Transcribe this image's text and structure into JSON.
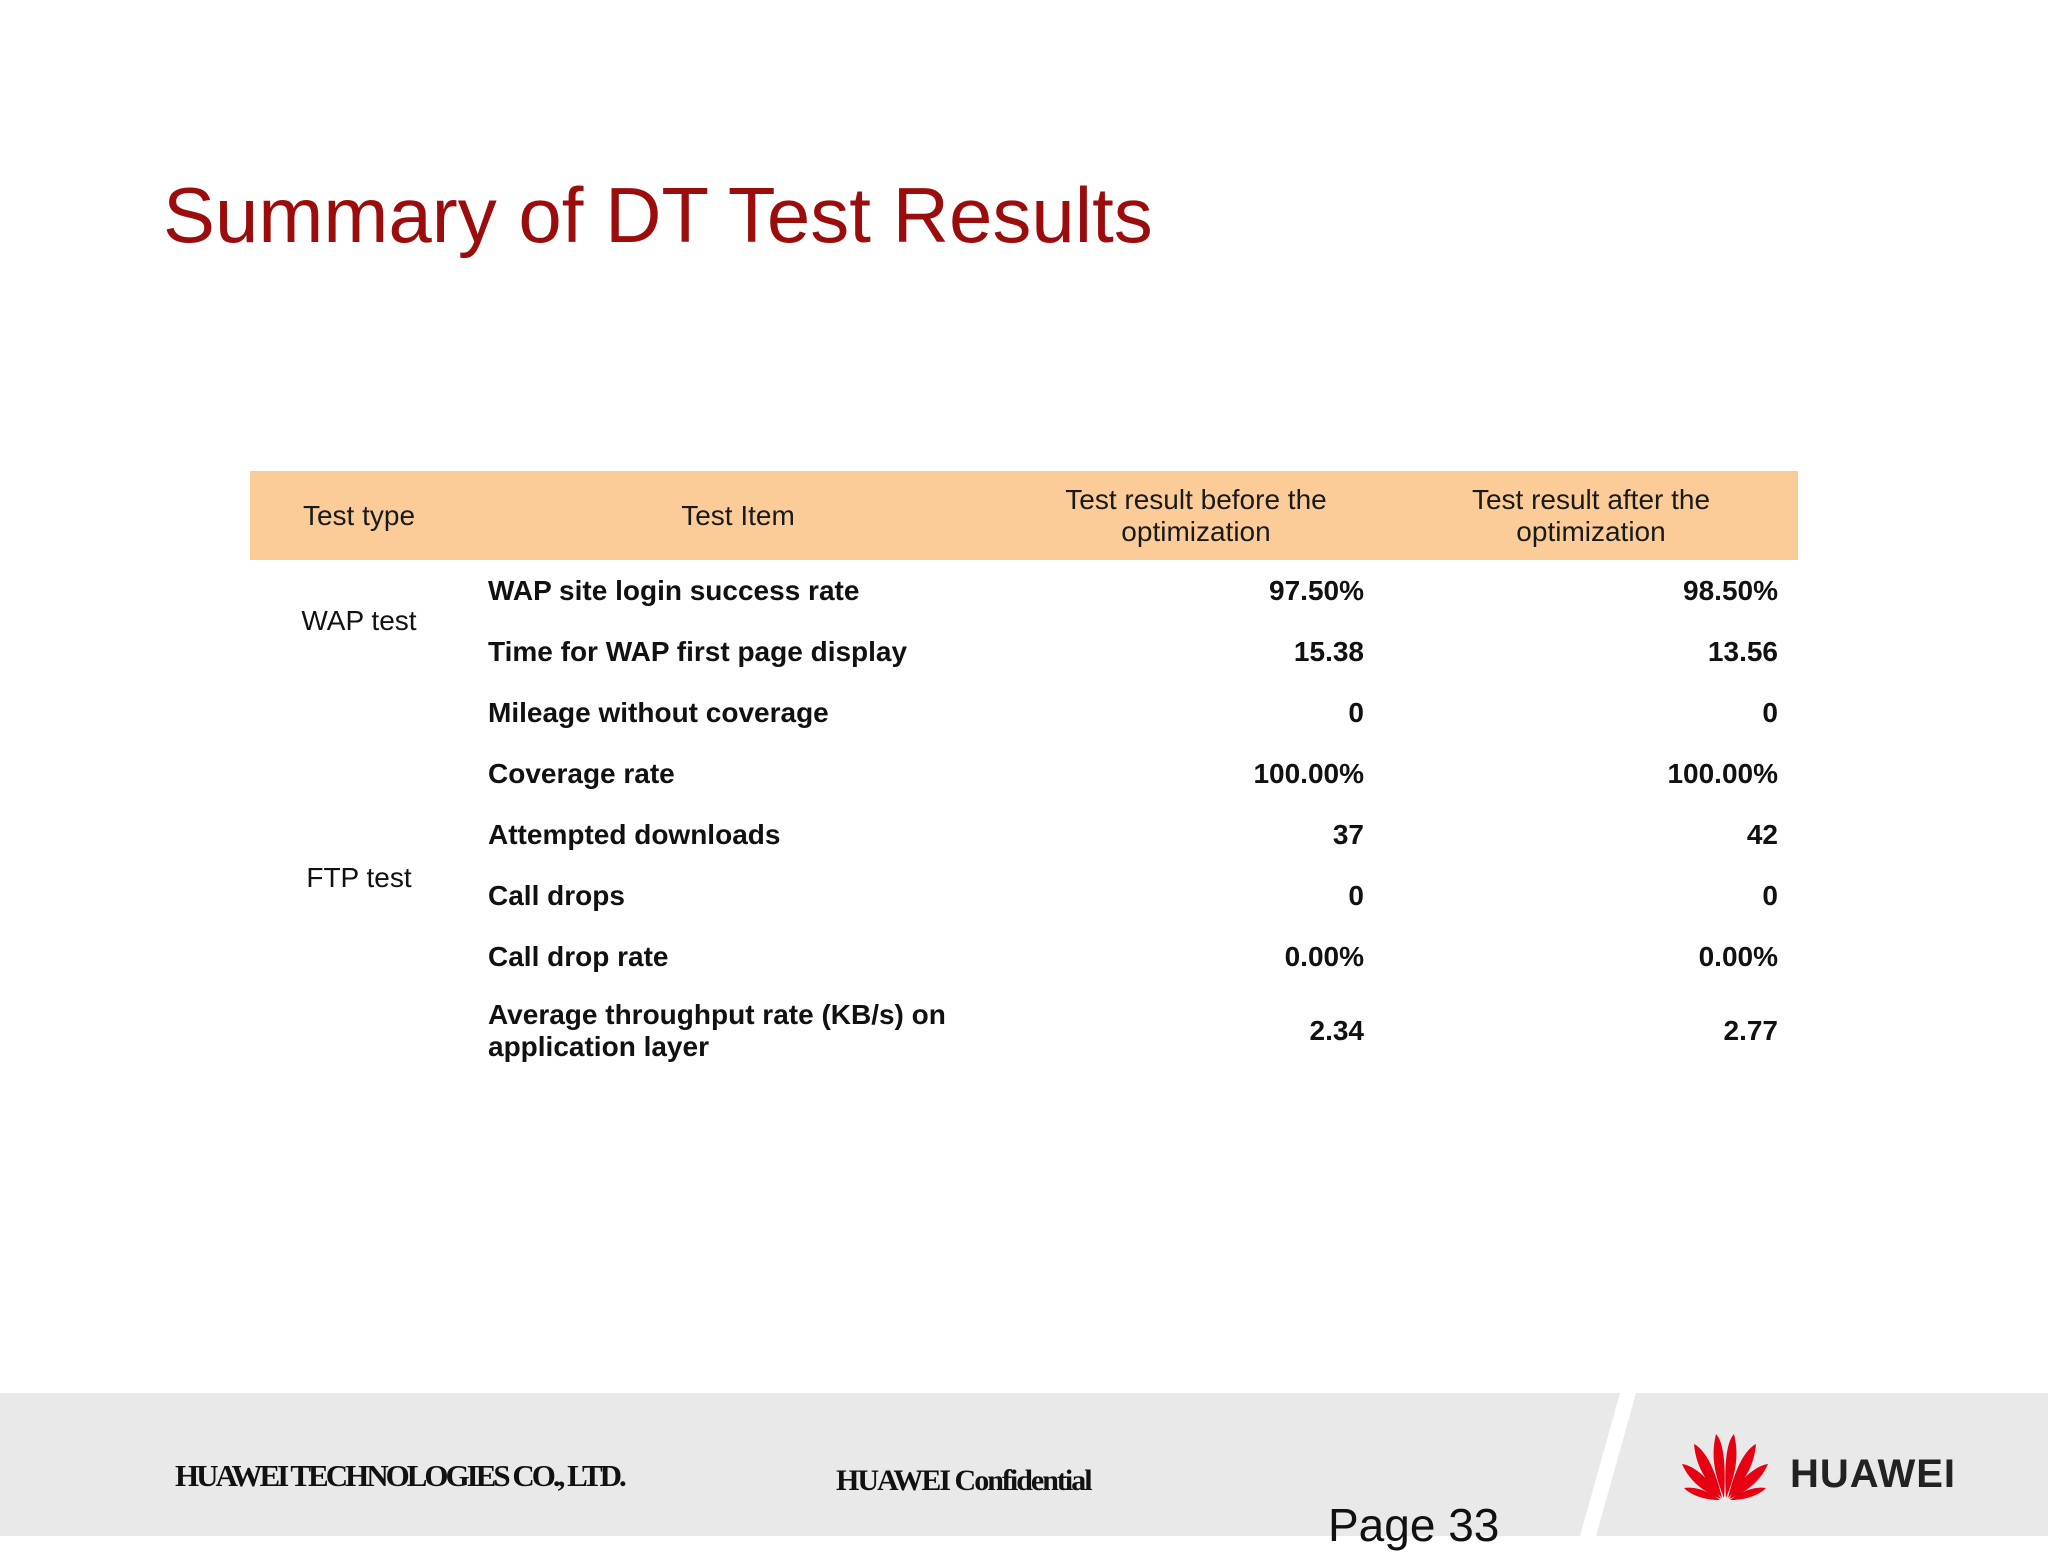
{
  "slide": {
    "title": "Summary of DT Test Results"
  },
  "table": {
    "headers": {
      "type": "Test type",
      "item": "Test Item",
      "before": "Test result before the optimization",
      "after": "Test result after the optimization"
    },
    "groups": {
      "wap": "WAP test",
      "ftp": "FTP test"
    },
    "rows": [
      {
        "item": "WAP site login success rate",
        "before": "97.50%",
        "after": "98.50%"
      },
      {
        "item": "Time for WAP first page display",
        "before": "15.38",
        "after": "13.56"
      },
      {
        "item": "Mileage without coverage",
        "before": "0",
        "after": "0"
      },
      {
        "item": "Coverage rate",
        "before": "100.00%",
        "after": "100.00%"
      },
      {
        "item": "Attempted downloads",
        "before": "37",
        "after": "42"
      },
      {
        "item": "Call drops",
        "before": "0",
        "after": "0"
      },
      {
        "item": "Call drop rate",
        "before": "0.00%",
        "after": "0.00%"
      },
      {
        "item": "Average throughput rate (KB/s) on application layer",
        "before": "2.34",
        "after": "2.77"
      }
    ]
  },
  "footer": {
    "company": "HUAWEI TECHNOLOGIES CO., LTD.",
    "confidential": "HUAWEI Confidential",
    "page": "Page 33",
    "brand": "HUAWEI",
    "logo_icon": "huawei-flower-logo",
    "brand_color": "#e60012"
  }
}
